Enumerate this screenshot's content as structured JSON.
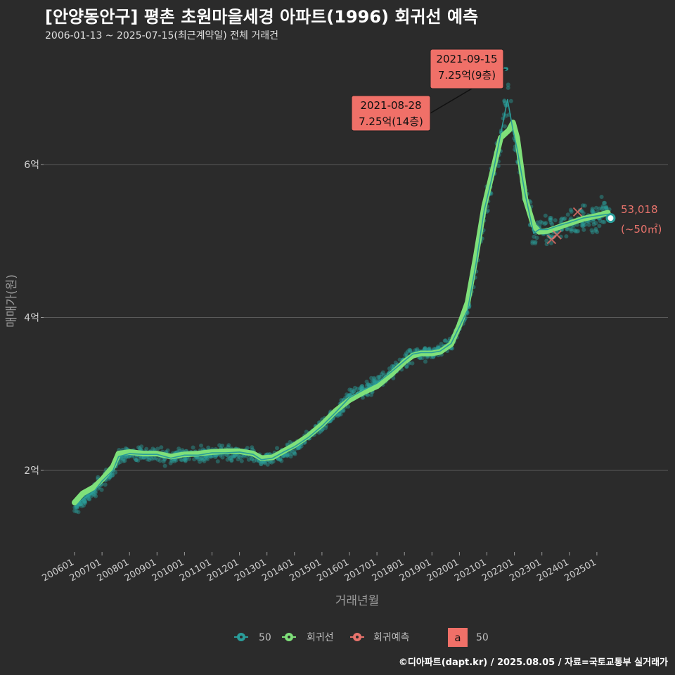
{
  "header": {
    "title": "[안양동안구] 평촌 초원마을세경 아파트(1996) 회귀선 예측",
    "subtitle": "2006-01-13 ~ 2025-07-15(최근계약일) 전체 거래건"
  },
  "caption": "©디아파트(dapt.kr) / 2025.08.05 / 자료=국토교통부 실거래가",
  "colors": {
    "background": "#2b2b2b",
    "points": "#2a9d9a",
    "regression": "#7fe07a",
    "prediction": "#e8736c",
    "grid": "#5a5a5a",
    "label_fill": "#f07068"
  },
  "chart_data": {
    "type": "scatter",
    "title": "[안양동안구] 평촌 초원마을세경 아파트(1996) 회귀선 예측",
    "xlabel": "거래년월",
    "ylabel": "매매가(원)",
    "x_start": 2006.0,
    "x_end": 2025.6,
    "ylim": [
      0.8,
      8.0
    ],
    "y_ticks": [
      {
        "value": 2,
        "label": "2억"
      },
      {
        "value": 4,
        "label": "4억"
      },
      {
        "value": 6,
        "label": "6억"
      }
    ],
    "x_ticks": [
      {
        "value": 2006.0,
        "label": "200601"
      },
      {
        "value": 2007.0,
        "label": "200701"
      },
      {
        "value": 2008.0,
        "label": "200801"
      },
      {
        "value": 2009.0,
        "label": "200901"
      },
      {
        "value": 2010.0,
        "label": "201001"
      },
      {
        "value": 2011.0,
        "label": "201101"
      },
      {
        "value": 2012.0,
        "label": "201201"
      },
      {
        "value": 2013.0,
        "label": "201301"
      },
      {
        "value": 2014.0,
        "label": "201401"
      },
      {
        "value": 2015.0,
        "label": "201501"
      },
      {
        "value": 2016.0,
        "label": "201601"
      },
      {
        "value": 2017.0,
        "label": "201701"
      },
      {
        "value": 2018.0,
        "label": "201801"
      },
      {
        "value": 2019.0,
        "label": "201901"
      },
      {
        "value": 2020.0,
        "label": "202001"
      },
      {
        "value": 2021.0,
        "label": "202101"
      },
      {
        "value": 2022.0,
        "label": "202201"
      },
      {
        "value": 2023.0,
        "label": "202301"
      },
      {
        "value": 2024.0,
        "label": "202401"
      },
      {
        "value": 2025.0,
        "label": "202501"
      }
    ],
    "series": [
      {
        "name": "회귀선",
        "points": [
          [
            2006.0,
            1.58
          ],
          [
            2006.3,
            1.7
          ],
          [
            2006.7,
            1.78
          ],
          [
            2007.0,
            1.88
          ],
          [
            2007.4,
            2.05
          ],
          [
            2007.6,
            2.22
          ],
          [
            2008.0,
            2.24
          ],
          [
            2008.5,
            2.22
          ],
          [
            2009.0,
            2.22
          ],
          [
            2009.5,
            2.18
          ],
          [
            2010.0,
            2.21
          ],
          [
            2010.5,
            2.22
          ],
          [
            2011.0,
            2.24
          ],
          [
            2011.5,
            2.25
          ],
          [
            2012.0,
            2.25
          ],
          [
            2012.5,
            2.22
          ],
          [
            2012.8,
            2.16
          ],
          [
            2013.2,
            2.17
          ],
          [
            2013.6,
            2.25
          ],
          [
            2014.0,
            2.33
          ],
          [
            2014.5,
            2.45
          ],
          [
            2015.0,
            2.6
          ],
          [
            2015.5,
            2.78
          ],
          [
            2016.0,
            2.92
          ],
          [
            2016.5,
            3.02
          ],
          [
            2017.0,
            3.1
          ],
          [
            2017.5,
            3.25
          ],
          [
            2018.0,
            3.42
          ],
          [
            2018.3,
            3.5
          ],
          [
            2018.6,
            3.53
          ],
          [
            2019.0,
            3.53
          ],
          [
            2019.3,
            3.55
          ],
          [
            2019.7,
            3.65
          ],
          [
            2020.0,
            3.9
          ],
          [
            2020.3,
            4.2
          ],
          [
            2020.6,
            4.8
          ],
          [
            2020.9,
            5.45
          ],
          [
            2021.2,
            5.9
          ],
          [
            2021.5,
            6.35
          ],
          [
            2021.8,
            6.45
          ],
          [
            2021.95,
            6.55
          ],
          [
            2022.1,
            6.35
          ],
          [
            2022.4,
            5.55
          ],
          [
            2022.7,
            5.2
          ],
          [
            2022.9,
            5.12
          ],
          [
            2023.2,
            5.13
          ],
          [
            2023.6,
            5.18
          ],
          [
            2024.0,
            5.23
          ],
          [
            2024.5,
            5.29
          ],
          [
            2025.0,
            5.33
          ],
          [
            2025.4,
            5.37
          ]
        ]
      },
      {
        "name": "50",
        "points": [
          [
            2006.0,
            1.52
          ],
          [
            2006.3,
            1.62
          ],
          [
            2006.7,
            1.72
          ],
          [
            2007.0,
            1.86
          ],
          [
            2007.4,
            2.0
          ],
          [
            2007.6,
            2.18
          ],
          [
            2008.0,
            2.22
          ],
          [
            2008.5,
            2.21
          ],
          [
            2009.0,
            2.21
          ],
          [
            2009.5,
            2.16
          ],
          [
            2010.0,
            2.2
          ],
          [
            2010.5,
            2.2
          ],
          [
            2011.0,
            2.23
          ],
          [
            2011.5,
            2.23
          ],
          [
            2012.0,
            2.24
          ],
          [
            2012.5,
            2.21
          ],
          [
            2012.8,
            2.14
          ],
          [
            2013.2,
            2.16
          ],
          [
            2013.6,
            2.24
          ],
          [
            2014.0,
            2.31
          ],
          [
            2014.5,
            2.43
          ],
          [
            2015.0,
            2.58
          ],
          [
            2015.5,
            2.76
          ],
          [
            2016.0,
            2.95
          ],
          [
            2016.5,
            3.05
          ],
          [
            2017.0,
            3.14
          ],
          [
            2017.5,
            3.28
          ],
          [
            2018.0,
            3.43
          ],
          [
            2018.3,
            3.52
          ],
          [
            2018.6,
            3.54
          ],
          [
            2019.0,
            3.54
          ],
          [
            2019.3,
            3.56
          ],
          [
            2019.7,
            3.66
          ],
          [
            2020.0,
            3.88
          ],
          [
            2020.3,
            4.1
          ],
          [
            2020.6,
            4.7
          ],
          [
            2020.9,
            5.4
          ],
          [
            2021.2,
            5.85
          ],
          [
            2021.5,
            6.4
          ],
          [
            2021.75,
            6.85
          ],
          [
            2021.95,
            6.45
          ],
          [
            2022.1,
            6.2
          ],
          [
            2022.4,
            5.6
          ],
          [
            2022.7,
            5.1
          ],
          [
            2022.9,
            5.15
          ],
          [
            2023.2,
            5.15
          ],
          [
            2023.6,
            5.2
          ],
          [
            2024.0,
            5.24
          ],
          [
            2024.5,
            5.3
          ],
          [
            2025.0,
            5.33
          ],
          [
            2025.4,
            5.35
          ]
        ]
      }
    ],
    "prediction_points": [
      [
        2023.35,
        5.02
      ],
      [
        2023.55,
        5.08
      ],
      [
        2024.3,
        5.38
      ]
    ],
    "annotations": [
      {
        "date": "2021-08-28",
        "price_label": "7.25억(14층)",
        "x": 2021.66,
        "y": 7.25
      },
      {
        "date": "2021-09-15",
        "price_label": "7.25억(9층)",
        "x": 2021.71,
        "y": 7.25
      }
    ],
    "last_point": {
      "x": 2025.5,
      "y": 5.3,
      "label_value": "53,018",
      "label_area": "(~50㎡)"
    },
    "legend": [
      {
        "label": "50",
        "color": "#2a9d9a"
      },
      {
        "label": "회귀선",
        "color": "#7fe07a"
      },
      {
        "label": "회귀예측",
        "color": "#e8736c"
      }
    ],
    "legend_size": {
      "symbol": "a",
      "label": "50"
    }
  }
}
